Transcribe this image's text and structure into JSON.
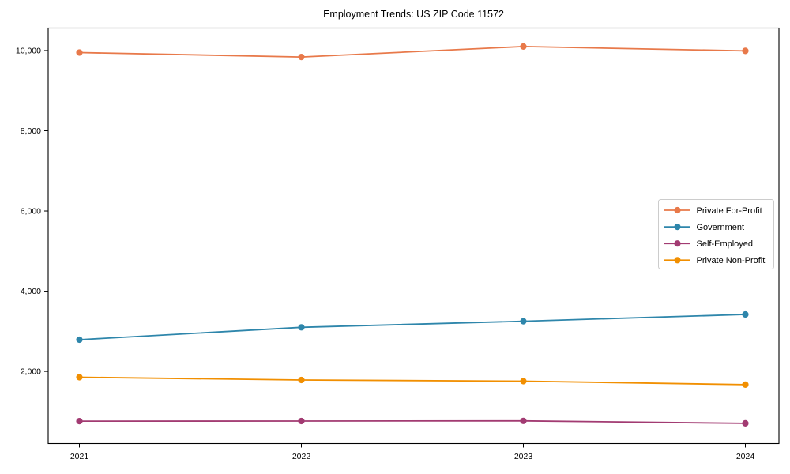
{
  "chart_data": {
    "type": "line",
    "title": "Employment Trends: US ZIP Code 11572",
    "xlabel": "",
    "ylabel": "",
    "categories": [
      "2021",
      "2022",
      "2023",
      "2024"
    ],
    "series": [
      {
        "name": "Private For-Profit",
        "color": "#e8794a",
        "values": [
          9950,
          9840,
          10100,
          9990
        ]
      },
      {
        "name": "Government",
        "color": "#2e86ab",
        "values": [
          2790,
          3100,
          3250,
          3420
        ]
      },
      {
        "name": "Self-Employed",
        "color": "#a23b72",
        "values": [
          760,
          762,
          765,
          705
        ]
      },
      {
        "name": "Private Non-Profit",
        "color": "#f18f01",
        "values": [
          1855,
          1785,
          1755,
          1670
        ]
      }
    ],
    "yticks": {
      "values": [
        2000,
        4000,
        6000,
        8000,
        10000
      ],
      "labels": [
        "2,000",
        "4,000",
        "6,000",
        "8,000",
        "10,000"
      ]
    },
    "ylim": [
      200,
      10560
    ],
    "grid": false,
    "legend_position": "center-right"
  }
}
